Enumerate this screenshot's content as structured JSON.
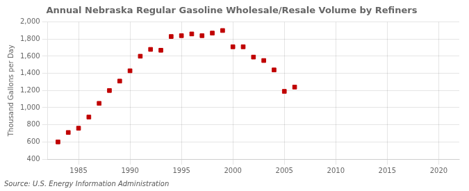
{
  "chart_data": {
    "type": "scatter",
    "title": "Annual Nebraska Regular Gasoline Wholesale/Resale Volume by Refiners",
    "ylabel": "Thousand Gallons per Day",
    "source": "Source: U.S. Energy Information Administration",
    "x": [
      1983,
      1984,
      1985,
      1986,
      1987,
      1988,
      1989,
      1990,
      1991,
      1992,
      1993,
      1994,
      1995,
      1996,
      1997,
      1998,
      1999,
      2000,
      2001,
      2002,
      2003,
      2004,
      2005,
      2006
    ],
    "values": [
      600,
      710,
      760,
      890,
      1050,
      1200,
      1310,
      1430,
      1600,
      1680,
      1670,
      1830,
      1840,
      1860,
      1840,
      1870,
      1900,
      1710,
      1710,
      1590,
      1550,
      1440,
      1190,
      1240
    ],
    "color": "#c00000",
    "marker": "square",
    "xlim": [
      1982,
      2022
    ],
    "xticks": [
      1985,
      1990,
      1995,
      2000,
      2005,
      2010,
      2015,
      2020
    ],
    "ylim": [
      400,
      2000
    ],
    "yticks": [
      400,
      600,
      800,
      {
        "value": 1000,
        "label": "1,000"
      },
      {
        "value": 1200,
        "label": "1,200"
      },
      {
        "value": 1400,
        "label": "1,400"
      },
      {
        "value": 1600,
        "label": "1,600"
      },
      {
        "value": 1800,
        "label": "1,800"
      },
      {
        "value": 2000,
        "label": "2,000"
      }
    ],
    "grid": true
  }
}
